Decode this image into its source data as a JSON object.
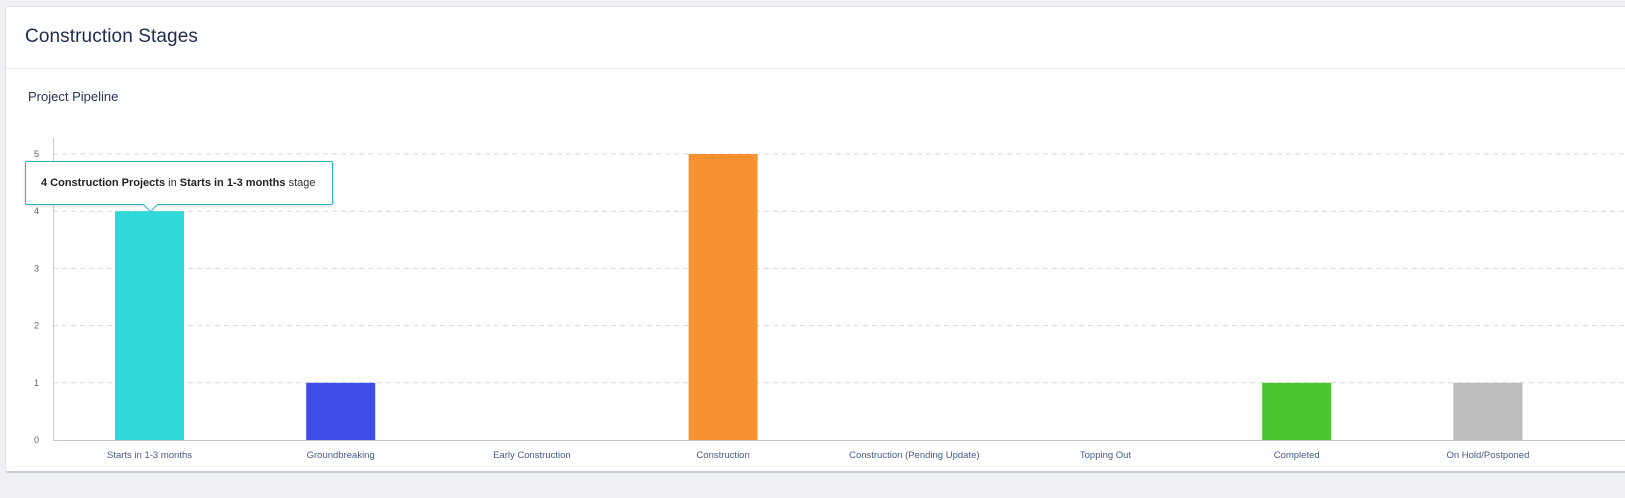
{
  "card": {
    "title": "Construction Stages"
  },
  "chart_data": {
    "type": "bar",
    "title": "Project Pipeline",
    "categories": [
      "Starts in 1-3 months",
      "Groundbreaking",
      "Early Construction",
      "Construction",
      "Construction (Pending Update)",
      "Topping Out",
      "Completed",
      "On Hold/Postponed"
    ],
    "values": [
      4,
      1,
      0,
      5,
      0,
      0,
      1,
      1
    ],
    "colors": [
      "#2fd9d9",
      "#3d4de6",
      "#2fd9d9",
      "#f79131",
      "#2fd9d9",
      "#2fd9d9",
      "#4bc431",
      "#bdbdbd"
    ],
    "ylim": [
      0,
      5
    ],
    "yticks": [
      "0",
      "1",
      "2",
      "3",
      "4",
      "5"
    ],
    "grid": true,
    "xlabel": "",
    "ylabel": ""
  },
  "tooltip": {
    "count": "4 Construction Projects",
    "middle": " in ",
    "stage": "Starts in 1-3 months",
    "suffix": " stage"
  }
}
